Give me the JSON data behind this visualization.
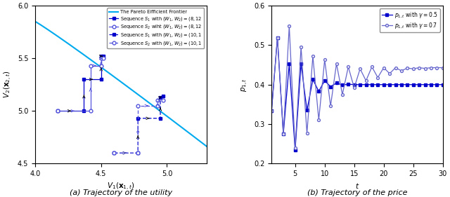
{
  "title_a": "(a) Trajectory of the utility",
  "title_b": "(b) Trajectory of the price",
  "ax1": {
    "xlim": [
      4.0,
      5.3
    ],
    "ylim": [
      4.5,
      6.0
    ],
    "xlabel": "$V_1(\\mathbf{x}_{1,t})$",
    "ylabel": "$V_2(\\mathbf{x}_{2,t})$",
    "pareto_color": "#00AAEE",
    "dark_blue": "#0000CC",
    "light_blue": "#5555DD",
    "s1_8_x": [
      4.17,
      4.37,
      4.37,
      4.5,
      4.5,
      4.52
    ],
    "s1_8_y": [
      5.0,
      5.0,
      5.3,
      5.3,
      5.52,
      5.52
    ],
    "s2_8_x": [
      4.17,
      4.42,
      4.42,
      4.5,
      4.5,
      4.52
    ],
    "s2_8_y": [
      5.0,
      5.0,
      5.43,
      5.43,
      5.5,
      5.5
    ],
    "s1_10_x": [
      4.6,
      4.78,
      4.78,
      4.95,
      4.95,
      4.97
    ],
    "s1_10_y": [
      4.6,
      4.6,
      4.93,
      4.93,
      5.13,
      5.14
    ],
    "s2_10_x": [
      4.6,
      4.78,
      4.78,
      4.93,
      4.93,
      4.97
    ],
    "s2_10_y": [
      4.6,
      4.6,
      5.05,
      5.05,
      5.1,
      5.1
    ]
  },
  "ax2": {
    "xlim": [
      0,
      30
    ],
    "ylim": [
      0.2,
      0.6
    ],
    "xlabel": "$t$",
    "ylabel": "$p_{1,t}$",
    "gamma05_color": "#0000CC",
    "gamma07_color": "#6666CC",
    "gamma05_label": "$p_{1,t}$ with $\\gamma = 0.5$",
    "gamma07_label": "$p_{1,t}$ with $\\gamma = 0.7$",
    "p05": [
      0.333,
      0.519,
      0.275,
      0.452,
      0.234,
      0.453,
      0.335,
      0.413,
      0.383,
      0.41,
      0.395,
      0.404,
      0.399,
      0.401,
      0.4,
      0.4,
      0.4,
      0.4,
      0.4,
      0.4,
      0.4,
      0.4,
      0.4,
      0.4,
      0.4,
      0.4,
      0.4,
      0.4,
      0.4,
      0.4
    ],
    "p07": [
      0.333,
      0.519,
      0.275,
      0.548,
      0.24,
      0.495,
      0.277,
      0.472,
      0.311,
      0.463,
      0.346,
      0.453,
      0.375,
      0.445,
      0.392,
      0.44,
      0.41,
      0.445,
      0.418,
      0.443,
      0.428,
      0.443,
      0.435,
      0.442,
      0.44,
      0.443,
      0.441,
      0.443,
      0.443,
      0.443
    ]
  }
}
